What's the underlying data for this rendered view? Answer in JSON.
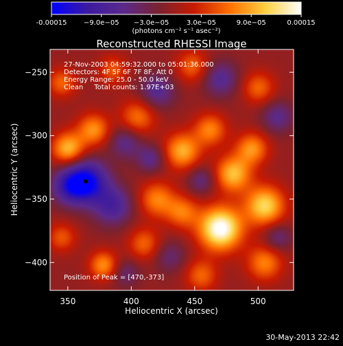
{
  "colorbar": {
    "ticks": [
      "-0.00015",
      "−9.0e−05",
      "−3.0e−05",
      "3.0e−05",
      "9.0e−05",
      "0.00015"
    ],
    "units": "(photons cm⁻² s⁻¹ asec⁻²)",
    "range": [
      -0.00015,
      0.00015
    ],
    "stops": [
      "#0000ff",
      "#3c1aa0",
      "#5a2a8c",
      "#7a2230",
      "#c81a00",
      "#ff7000",
      "#ffd040",
      "#ffffff"
    ]
  },
  "footer": {
    "timestamp": "30-May-2013 22:42"
  },
  "chart_data": {
    "type": "heatmap",
    "title": "Reconstructed RHESSI Image",
    "xlabel": "Heliocentric X (arcsec)",
    "ylabel": "Heliocentric Y (arcsec)",
    "xlim": [
      336,
      528
    ],
    "ylim": [
      -422,
      -232
    ],
    "x_ticks": [
      350,
      400,
      450,
      500
    ],
    "y_ticks": [
      -250,
      -300,
      -350,
      -400
    ],
    "annotations": [
      "27-Nov-2003 04:59:32.000 to 05:01:36.000",
      "Detectors: 4F 5F 6F 7F 8F, Att 0",
      "Energy Range: 25.0 - 50.0 keV",
      "Clean     Total counts: 1.97E+03"
    ],
    "peak_label": "Position of Peak = [470,-373]",
    "peak": [
      470,
      -373
    ],
    "min_marker": [
      364,
      -336
    ],
    "blobs": [
      {
        "x": 470,
        "y": -373,
        "amp": 1.15,
        "sigma": 12
      },
      {
        "x": 505,
        "y": -355,
        "amp": 0.85,
        "sigma": 11
      },
      {
        "x": 480,
        "y": -330,
        "amp": 0.75,
        "sigma": 10
      },
      {
        "x": 440,
        "y": -312,
        "amp": 0.7,
        "sigma": 10
      },
      {
        "x": 462,
        "y": -295,
        "amp": 0.55,
        "sigma": 9
      },
      {
        "x": 495,
        "y": -310,
        "amp": 0.6,
        "sigma": 9
      },
      {
        "x": 350,
        "y": -310,
        "amp": 0.75,
        "sigma": 9
      },
      {
        "x": 370,
        "y": -295,
        "amp": 0.6,
        "sigma": 9
      },
      {
        "x": 405,
        "y": -285,
        "amp": 0.5,
        "sigma": 10
      },
      {
        "x": 420,
        "y": -350,
        "amp": 0.55,
        "sigma": 10
      },
      {
        "x": 440,
        "y": -360,
        "amp": 0.5,
        "sigma": 9
      },
      {
        "x": 378,
        "y": -402,
        "amp": 0.6,
        "sigma": 8
      },
      {
        "x": 505,
        "y": -400,
        "amp": 0.55,
        "sigma": 10
      },
      {
        "x": 455,
        "y": -410,
        "amp": 0.45,
        "sigma": 9
      },
      {
        "x": 410,
        "y": -385,
        "amp": 0.45,
        "sigma": 9
      },
      {
        "x": 345,
        "y": -380,
        "amp": 0.4,
        "sigma": 8
      },
      {
        "x": 448,
        "y": -245,
        "amp": 0.45,
        "sigma": 9
      },
      {
        "x": 500,
        "y": -262,
        "amp": 0.45,
        "sigma": 9
      },
      {
        "x": 345,
        "y": -258,
        "amp": 0.45,
        "sigma": 8
      },
      {
        "x": 385,
        "y": -248,
        "amp": 0.4,
        "sigma": 8
      },
      {
        "x": 364,
        "y": -336,
        "amp": -0.95,
        "sigma": 12
      },
      {
        "x": 385,
        "y": -355,
        "amp": -0.55,
        "sigma": 11
      },
      {
        "x": 350,
        "y": -340,
        "amp": -0.5,
        "sigma": 10
      },
      {
        "x": 395,
        "y": -305,
        "amp": -0.4,
        "sigma": 9
      },
      {
        "x": 420,
        "y": -265,
        "amp": -0.45,
        "sigma": 10
      },
      {
        "x": 470,
        "y": -255,
        "amp": -0.45,
        "sigma": 10
      },
      {
        "x": 515,
        "y": -285,
        "amp": -0.4,
        "sigma": 9
      },
      {
        "x": 415,
        "y": -318,
        "amp": -0.4,
        "sigma": 8
      },
      {
        "x": 455,
        "y": -335,
        "amp": -0.35,
        "sigma": 8
      },
      {
        "x": 515,
        "y": -380,
        "amp": -0.35,
        "sigma": 8
      },
      {
        "x": 430,
        "y": -395,
        "amp": -0.3,
        "sigma": 9
      },
      {
        "x": 395,
        "y": -408,
        "amp": -0.3,
        "sigma": 8
      }
    ]
  }
}
